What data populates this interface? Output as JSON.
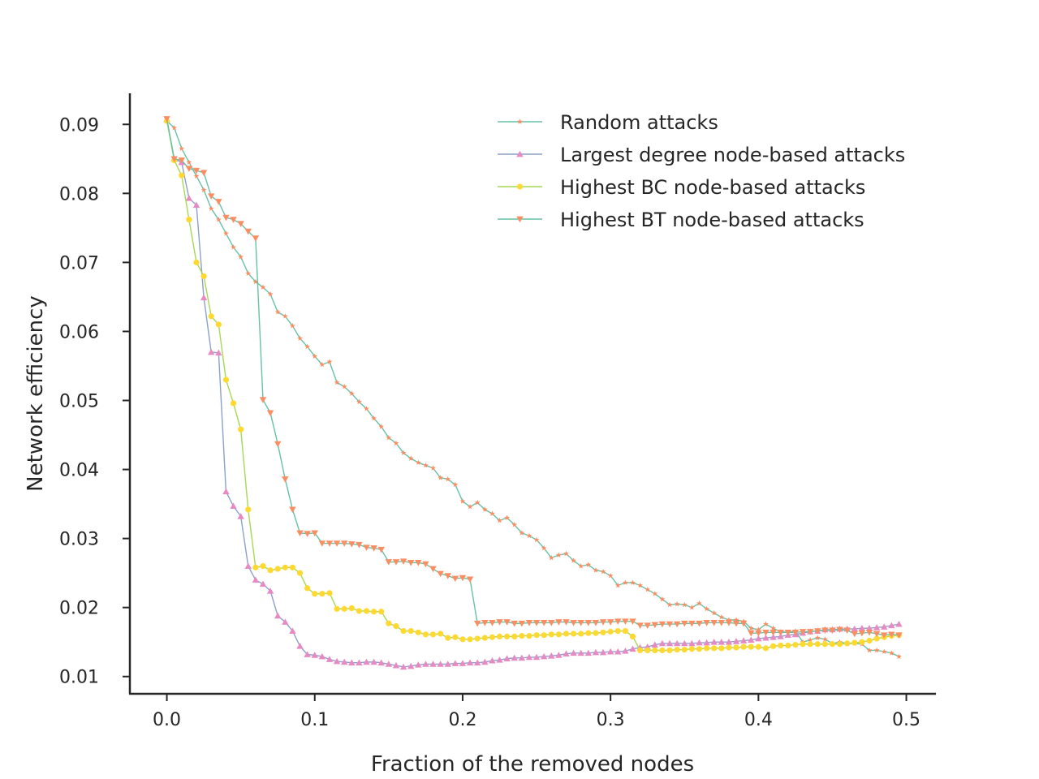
{
  "chart_data": {
    "type": "line",
    "title": "",
    "xlabel": "Fraction of the removed nodes",
    "ylabel": "Network efficiency",
    "xlim": [
      -0.025,
      0.52
    ],
    "ylim": [
      0.0075,
      0.0945
    ],
    "xticks": [
      0.0,
      0.1,
      0.2,
      0.3,
      0.4,
      0.5
    ],
    "xtick_labels": [
      "0.0",
      "0.1",
      "0.2",
      "0.3",
      "0.4",
      "0.5"
    ],
    "yticks": [
      0.01,
      0.02,
      0.03,
      0.04,
      0.05,
      0.06,
      0.07,
      0.08,
      0.09
    ],
    "ytick_labels": [
      "0.01",
      "0.02",
      "0.03",
      "0.04",
      "0.05",
      "0.06",
      "0.07",
      "0.08",
      "0.09"
    ],
    "grid": false,
    "legend_position": "top-right",
    "series": [
      {
        "name": "Random attacks",
        "line_color": "#66c2a5",
        "marker_color": "#fc8d62",
        "marker": "star",
        "x": [
          0.0,
          0.005,
          0.01,
          0.015,
          0.02,
          0.025,
          0.03,
          0.035,
          0.04,
          0.045,
          0.05,
          0.055,
          0.06,
          0.065,
          0.07,
          0.075,
          0.08,
          0.085,
          0.09,
          0.095,
          0.1,
          0.105,
          0.11,
          0.115,
          0.12,
          0.125,
          0.13,
          0.135,
          0.14,
          0.145,
          0.15,
          0.155,
          0.16,
          0.165,
          0.17,
          0.175,
          0.18,
          0.185,
          0.19,
          0.195,
          0.2,
          0.205,
          0.21,
          0.215,
          0.22,
          0.225,
          0.23,
          0.235,
          0.24,
          0.245,
          0.25,
          0.255,
          0.26,
          0.265,
          0.27,
          0.275,
          0.28,
          0.285,
          0.29,
          0.295,
          0.3,
          0.305,
          0.31,
          0.315,
          0.32,
          0.325,
          0.33,
          0.335,
          0.34,
          0.345,
          0.35,
          0.355,
          0.36,
          0.365,
          0.37,
          0.375,
          0.38,
          0.385,
          0.39,
          0.395,
          0.4,
          0.405,
          0.41,
          0.415,
          0.42,
          0.425,
          0.43,
          0.435,
          0.44,
          0.445,
          0.45,
          0.455,
          0.46,
          0.465,
          0.47,
          0.475,
          0.48,
          0.485,
          0.49,
          0.495
        ],
        "y": [
          0.0905,
          0.0895,
          0.0865,
          0.0845,
          0.0825,
          0.0805,
          0.0778,
          0.0762,
          0.0742,
          0.0722,
          0.0708,
          0.0684,
          0.0672,
          0.0664,
          0.0654,
          0.0628,
          0.0622,
          0.0608,
          0.059,
          0.0578,
          0.0564,
          0.0552,
          0.0556,
          0.0526,
          0.052,
          0.051,
          0.0498,
          0.0488,
          0.0474,
          0.0462,
          0.0446,
          0.0438,
          0.0424,
          0.0416,
          0.041,
          0.0406,
          0.0402,
          0.0388,
          0.0386,
          0.0378,
          0.0354,
          0.0346,
          0.0352,
          0.0342,
          0.0336,
          0.0326,
          0.033,
          0.032,
          0.0308,
          0.0304,
          0.0298,
          0.0286,
          0.0272,
          0.0276,
          0.0278,
          0.0268,
          0.026,
          0.0262,
          0.0254,
          0.0252,
          0.0246,
          0.0232,
          0.0236,
          0.0236,
          0.0232,
          0.0226,
          0.022,
          0.0212,
          0.0204,
          0.0205,
          0.0204,
          0.02,
          0.0206,
          0.0198,
          0.0192,
          0.0186,
          0.0182,
          0.0182,
          0.018,
          0.017,
          0.0168,
          0.0176,
          0.017,
          0.0165,
          0.0164,
          0.0166,
          0.015,
          0.0153,
          0.0156,
          0.0154,
          0.0148,
          0.015,
          0.0148,
          0.0148,
          0.0147,
          0.0138,
          0.0138,
          0.0136,
          0.0134,
          0.0129
        ]
      },
      {
        "name": "Largest degree node-based attacks",
        "line_color": "#8da0cb",
        "marker_color": "#e78ac3",
        "marker": "triangle-up",
        "x": [
          0.0,
          0.005,
          0.01,
          0.015,
          0.02,
          0.025,
          0.03,
          0.035,
          0.04,
          0.045,
          0.05,
          0.055,
          0.06,
          0.065,
          0.07,
          0.075,
          0.08,
          0.085,
          0.09,
          0.095,
          0.1,
          0.105,
          0.11,
          0.115,
          0.12,
          0.125,
          0.13,
          0.135,
          0.14,
          0.145,
          0.15,
          0.155,
          0.16,
          0.165,
          0.17,
          0.175,
          0.18,
          0.185,
          0.19,
          0.195,
          0.2,
          0.205,
          0.21,
          0.215,
          0.22,
          0.225,
          0.23,
          0.235,
          0.24,
          0.245,
          0.25,
          0.255,
          0.26,
          0.265,
          0.27,
          0.275,
          0.28,
          0.285,
          0.29,
          0.295,
          0.3,
          0.305,
          0.31,
          0.315,
          0.32,
          0.325,
          0.33,
          0.335,
          0.34,
          0.345,
          0.35,
          0.355,
          0.36,
          0.365,
          0.37,
          0.375,
          0.38,
          0.385,
          0.39,
          0.395,
          0.4,
          0.405,
          0.41,
          0.415,
          0.42,
          0.425,
          0.43,
          0.435,
          0.44,
          0.445,
          0.45,
          0.455,
          0.46,
          0.465,
          0.47,
          0.475,
          0.48,
          0.485,
          0.49,
          0.495
        ],
        "y": [
          0.0907,
          0.085,
          0.0845,
          0.0793,
          0.0783,
          0.0649,
          0.057,
          0.0569,
          0.0368,
          0.0347,
          0.0332,
          0.026,
          0.024,
          0.0234,
          0.0224,
          0.0188,
          0.0179,
          0.0166,
          0.0144,
          0.0132,
          0.0131,
          0.0129,
          0.0125,
          0.0122,
          0.0121,
          0.012,
          0.012,
          0.0121,
          0.0121,
          0.012,
          0.0118,
          0.0116,
          0.0114,
          0.0115,
          0.0117,
          0.0118,
          0.0118,
          0.0118,
          0.0118,
          0.0119,
          0.0119,
          0.012,
          0.012,
          0.0121,
          0.0123,
          0.0124,
          0.0126,
          0.0127,
          0.0127,
          0.0128,
          0.0128,
          0.0129,
          0.013,
          0.0131,
          0.0133,
          0.0134,
          0.0134,
          0.0134,
          0.0135,
          0.0135,
          0.0136,
          0.0136,
          0.0137,
          0.014,
          0.0142,
          0.0143,
          0.0146,
          0.0148,
          0.0148,
          0.0148,
          0.0148,
          0.0148,
          0.0149,
          0.0149,
          0.015,
          0.015,
          0.015,
          0.0151,
          0.0152,
          0.0153,
          0.0155,
          0.0156,
          0.0157,
          0.0158,
          0.016,
          0.0161,
          0.0163,
          0.0165,
          0.0166,
          0.0168,
          0.0168,
          0.0169,
          0.0169,
          0.0169,
          0.017,
          0.017,
          0.0171,
          0.0172,
          0.0174,
          0.0176
        ]
      },
      {
        "name": "Highest BC node-based attacks",
        "line_color": "#a6d854",
        "marker_color": "#ffd92f",
        "marker": "circle",
        "x": [
          0.0,
          0.005,
          0.01,
          0.015,
          0.02,
          0.025,
          0.03,
          0.035,
          0.04,
          0.045,
          0.05,
          0.055,
          0.06,
          0.065,
          0.07,
          0.075,
          0.08,
          0.085,
          0.09,
          0.095,
          0.1,
          0.105,
          0.11,
          0.115,
          0.12,
          0.125,
          0.13,
          0.135,
          0.14,
          0.145,
          0.15,
          0.155,
          0.16,
          0.165,
          0.17,
          0.175,
          0.18,
          0.185,
          0.19,
          0.195,
          0.2,
          0.205,
          0.21,
          0.215,
          0.22,
          0.225,
          0.23,
          0.235,
          0.24,
          0.245,
          0.25,
          0.255,
          0.26,
          0.265,
          0.27,
          0.275,
          0.28,
          0.285,
          0.29,
          0.295,
          0.3,
          0.305,
          0.31,
          0.315,
          0.32,
          0.325,
          0.33,
          0.335,
          0.34,
          0.345,
          0.35,
          0.355,
          0.36,
          0.365,
          0.37,
          0.375,
          0.38,
          0.385,
          0.39,
          0.395,
          0.4,
          0.405,
          0.41,
          0.415,
          0.42,
          0.425,
          0.43,
          0.435,
          0.44,
          0.445,
          0.45,
          0.455,
          0.46,
          0.465,
          0.47,
          0.475,
          0.48,
          0.485,
          0.49,
          0.495
        ],
        "y": [
          0.0905,
          0.0848,
          0.0826,
          0.0762,
          0.07,
          0.068,
          0.0622,
          0.061,
          0.053,
          0.0496,
          0.0458,
          0.0342,
          0.0258,
          0.026,
          0.0254,
          0.0256,
          0.0258,
          0.0258,
          0.025,
          0.0228,
          0.022,
          0.022,
          0.0221,
          0.0198,
          0.0198,
          0.0199,
          0.0195,
          0.0195,
          0.0194,
          0.0194,
          0.0177,
          0.0173,
          0.0166,
          0.0166,
          0.0164,
          0.0161,
          0.0161,
          0.0162,
          0.0156,
          0.0157,
          0.0154,
          0.0154,
          0.0155,
          0.0156,
          0.0157,
          0.0158,
          0.0158,
          0.0158,
          0.0159,
          0.0159,
          0.016,
          0.016,
          0.0161,
          0.0161,
          0.0162,
          0.0162,
          0.0162,
          0.0163,
          0.0163,
          0.0164,
          0.0165,
          0.0166,
          0.0166,
          0.0158,
          0.0138,
          0.0138,
          0.0138,
          0.0138,
          0.0138,
          0.0139,
          0.0139,
          0.014,
          0.014,
          0.0141,
          0.0141,
          0.0141,
          0.0142,
          0.0142,
          0.0143,
          0.0143,
          0.0143,
          0.0141,
          0.0144,
          0.0145,
          0.0145,
          0.0146,
          0.0147,
          0.0147,
          0.0147,
          0.0147,
          0.0147,
          0.0147,
          0.0148,
          0.0149,
          0.015,
          0.0152,
          0.0155,
          0.0157,
          0.0159,
          0.016
        ]
      },
      {
        "name": "Highest BT node-based attacks",
        "line_color": "#66c2a5",
        "marker_color": "#fc8d62",
        "marker": "triangle-down",
        "x": [
          0.0,
          0.005,
          0.01,
          0.015,
          0.02,
          0.025,
          0.03,
          0.035,
          0.04,
          0.045,
          0.05,
          0.055,
          0.06,
          0.065,
          0.07,
          0.075,
          0.08,
          0.085,
          0.09,
          0.095,
          0.1,
          0.105,
          0.11,
          0.115,
          0.12,
          0.125,
          0.13,
          0.135,
          0.14,
          0.145,
          0.15,
          0.155,
          0.16,
          0.165,
          0.17,
          0.175,
          0.18,
          0.185,
          0.19,
          0.195,
          0.2,
          0.205,
          0.21,
          0.215,
          0.22,
          0.225,
          0.23,
          0.235,
          0.24,
          0.245,
          0.25,
          0.255,
          0.26,
          0.265,
          0.27,
          0.275,
          0.28,
          0.285,
          0.29,
          0.295,
          0.3,
          0.305,
          0.31,
          0.315,
          0.32,
          0.325,
          0.33,
          0.335,
          0.34,
          0.345,
          0.35,
          0.355,
          0.36,
          0.365,
          0.37,
          0.375,
          0.38,
          0.385,
          0.39,
          0.395,
          0.4,
          0.405,
          0.41,
          0.415,
          0.42,
          0.425,
          0.43,
          0.435,
          0.44,
          0.445,
          0.45,
          0.455,
          0.46,
          0.465,
          0.47,
          0.475,
          0.48,
          0.485,
          0.49,
          0.495
        ],
        "y": [
          0.0908,
          0.085,
          0.0848,
          0.0836,
          0.0833,
          0.083,
          0.0796,
          0.0788,
          0.0765,
          0.0762,
          0.0756,
          0.0745,
          0.0735,
          0.0501,
          0.0482,
          0.0437,
          0.0386,
          0.0342,
          0.0308,
          0.0307,
          0.0308,
          0.0293,
          0.0293,
          0.0293,
          0.0293,
          0.0292,
          0.0291,
          0.0287,
          0.0286,
          0.0284,
          0.0266,
          0.0266,
          0.0267,
          0.0265,
          0.0265,
          0.0263,
          0.0256,
          0.0249,
          0.0246,
          0.0242,
          0.0243,
          0.0241,
          0.0177,
          0.0178,
          0.0178,
          0.0179,
          0.0179,
          0.0177,
          0.0177,
          0.0178,
          0.0178,
          0.0178,
          0.0178,
          0.0179,
          0.0179,
          0.0178,
          0.0178,
          0.0178,
          0.0178,
          0.0179,
          0.0179,
          0.018,
          0.018,
          0.018,
          0.0174,
          0.0174,
          0.0175,
          0.0176,
          0.0176,
          0.0176,
          0.0177,
          0.0177,
          0.0177,
          0.0178,
          0.0178,
          0.0178,
          0.0178,
          0.0177,
          0.0177,
          0.0163,
          0.0163,
          0.0164,
          0.0164,
          0.0164,
          0.0164,
          0.0164,
          0.0165,
          0.0165,
          0.0166,
          0.0167,
          0.0167,
          0.0168,
          0.0167,
          0.0162,
          0.0163,
          0.0164,
          0.0162,
          0.016,
          0.0161,
          0.016
        ]
      }
    ]
  }
}
